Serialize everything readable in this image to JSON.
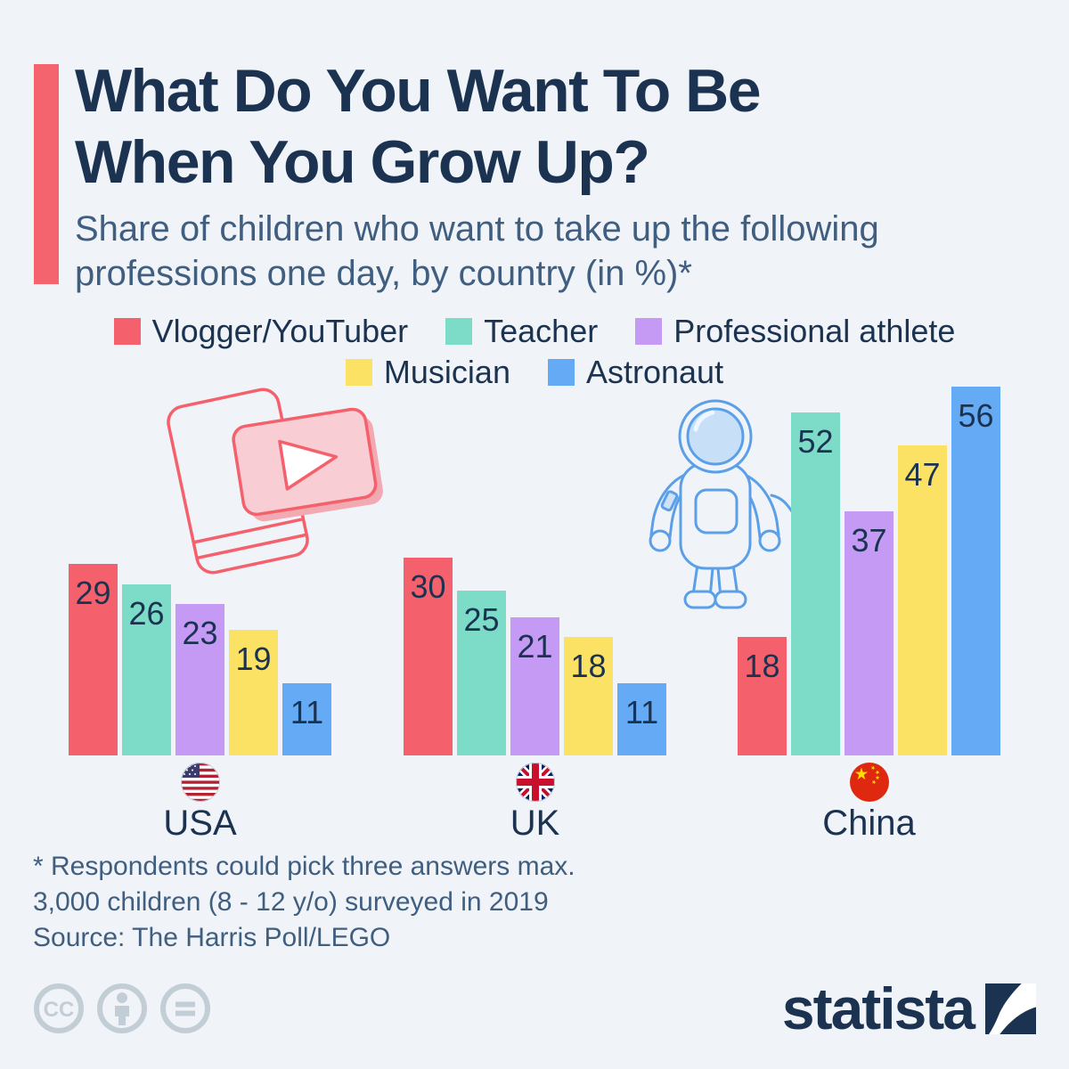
{
  "colors": {
    "background": "#f0f4f9",
    "navy": "#1b3350",
    "slate": "#3f5e80",
    "accent_red": "#f4616c",
    "teal": "#7ddcc8",
    "purple": "#c49af5",
    "yellow": "#fbe164",
    "blue": "#64aaf4",
    "license_grey": "#c3cdd6"
  },
  "title": {
    "line1": "What Do You Want To Be",
    "line2": "When You Grow Up?"
  },
  "subtitle": {
    "line1": "Share of children who want to take up the following",
    "line2": "professions one day, by country (in %)*"
  },
  "chart_data": {
    "type": "bar",
    "title": "What Do You Want To Be When You Grow Up?",
    "subtitle": "Share of children who want to take up the following professions one day, by country (in %)*",
    "unit": "%",
    "categories": [
      "USA",
      "UK",
      "China"
    ],
    "series": [
      {
        "name": "Vlogger/YouTuber",
        "color": "#f4616c",
        "values": [
          29,
          30,
          18
        ]
      },
      {
        "name": "Teacher",
        "color": "#7ddcc8",
        "values": [
          26,
          25,
          52
        ]
      },
      {
        "name": "Professional athlete",
        "color": "#c49af5",
        "values": [
          23,
          21,
          37
        ]
      },
      {
        "name": "Musician",
        "color": "#fbe164",
        "values": [
          19,
          18,
          47
        ]
      },
      {
        "name": "Astronaut",
        "color": "#64aaf4",
        "values": [
          11,
          11,
          56
        ]
      }
    ],
    "ylim": [
      0,
      56
    ],
    "value_labels": true,
    "legend_position": "top-center",
    "grid": false
  },
  "footnote": {
    "line1": "* Respondents could pick three answers max.",
    "line2": "3,000 children (8 - 12 y/o) surveyed in 2019"
  },
  "source": "Source: The Harris Poll/LEGO",
  "branding": {
    "wordmark": "statista",
    "logo_icon": "statista-swoosh-icon"
  },
  "license": {
    "icons": [
      "cc-icon",
      "attribution-icon",
      "no-derivatives-icon"
    ]
  },
  "illustrations": [
    "smartphone-youtube-illustration",
    "astronaut-illustration"
  ],
  "flag_icons": [
    "usa-flag-icon",
    "uk-flag-icon",
    "china-flag-icon"
  ]
}
